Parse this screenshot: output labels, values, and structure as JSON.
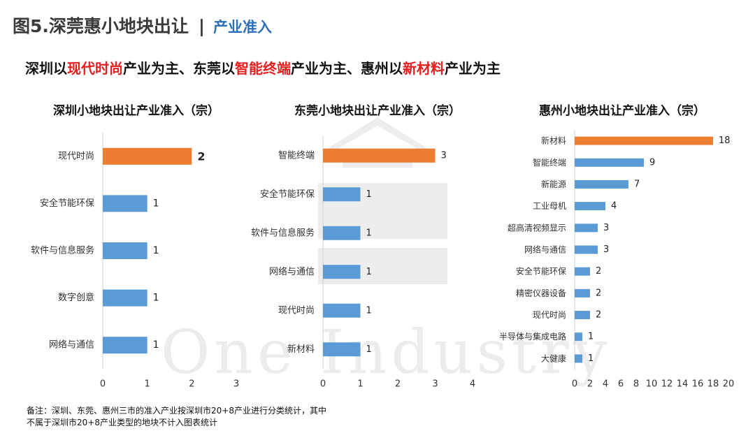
{
  "header": {
    "title": "图5.深莞惠小地块出让",
    "separator": "|",
    "subtitle": "产业准入"
  },
  "summary": {
    "p1": "深圳以",
    "h1": "现代时尚",
    "p2": "产业为主、东莞以",
    "h2": "智能终端",
    "p3": "产业为主、惠州以",
    "h3": "新材料",
    "p4": "产业为主"
  },
  "watermark": "One Industry",
  "colors": {
    "highlight_bar": "#ed7d31",
    "normal_bar": "#5b9bd5",
    "highlight_text": "#e61e1e",
    "header_accent": "#2f6fb8"
  },
  "chart_data": [
    {
      "type": "bar",
      "orientation": "horizontal",
      "title": "深圳小地块出让产业准入（宗）",
      "categories": [
        "现代时尚",
        "安全节能环保",
        "软件与信息服务",
        "数字创意",
        "网络与通信"
      ],
      "values": [
        2,
        1,
        1,
        1,
        1
      ],
      "highlight_index": 0,
      "xlim": [
        0,
        3
      ],
      "xticks": [
        "0",
        "1",
        "2",
        "3"
      ]
    },
    {
      "type": "bar",
      "orientation": "horizontal",
      "title": "东莞小地块出让产业准入（宗）",
      "categories": [
        "智能终端",
        "安全节能环保",
        "软件与信息服务",
        "网络与通信",
        "现代时尚",
        "新材料"
      ],
      "values": [
        3,
        1,
        1,
        1,
        1,
        1
      ],
      "highlight_index": 0,
      "xlim": [
        0,
        4
      ],
      "xticks": [
        "0",
        "1",
        "2",
        "3",
        "4"
      ]
    },
    {
      "type": "bar",
      "orientation": "horizontal",
      "title": "惠州小地块出让产业准入（宗）",
      "categories": [
        "新材料",
        "智能终端",
        "新能源",
        "工业母机",
        "超高清视频显示",
        "网络与通信",
        "安全节能环保",
        "精密仪器设备",
        "现代时尚",
        "半导体与集成电路",
        "大健康"
      ],
      "values": [
        18,
        9,
        7,
        4,
        3,
        3,
        2,
        2,
        2,
        1,
        1
      ],
      "highlight_index": 0,
      "xlim": [
        0,
        20
      ],
      "xticks": [
        "0",
        "2",
        "4",
        "6",
        "8",
        "10",
        "12",
        "14",
        "16",
        "18",
        "20"
      ]
    }
  ],
  "note": {
    "line1": "备注：深圳、东莞、惠州三市的准入产业按深圳市20+8产业进行分类统计，其中",
    "line2": "不属于深圳市20+8产业类型的地块不计入图表统计"
  }
}
